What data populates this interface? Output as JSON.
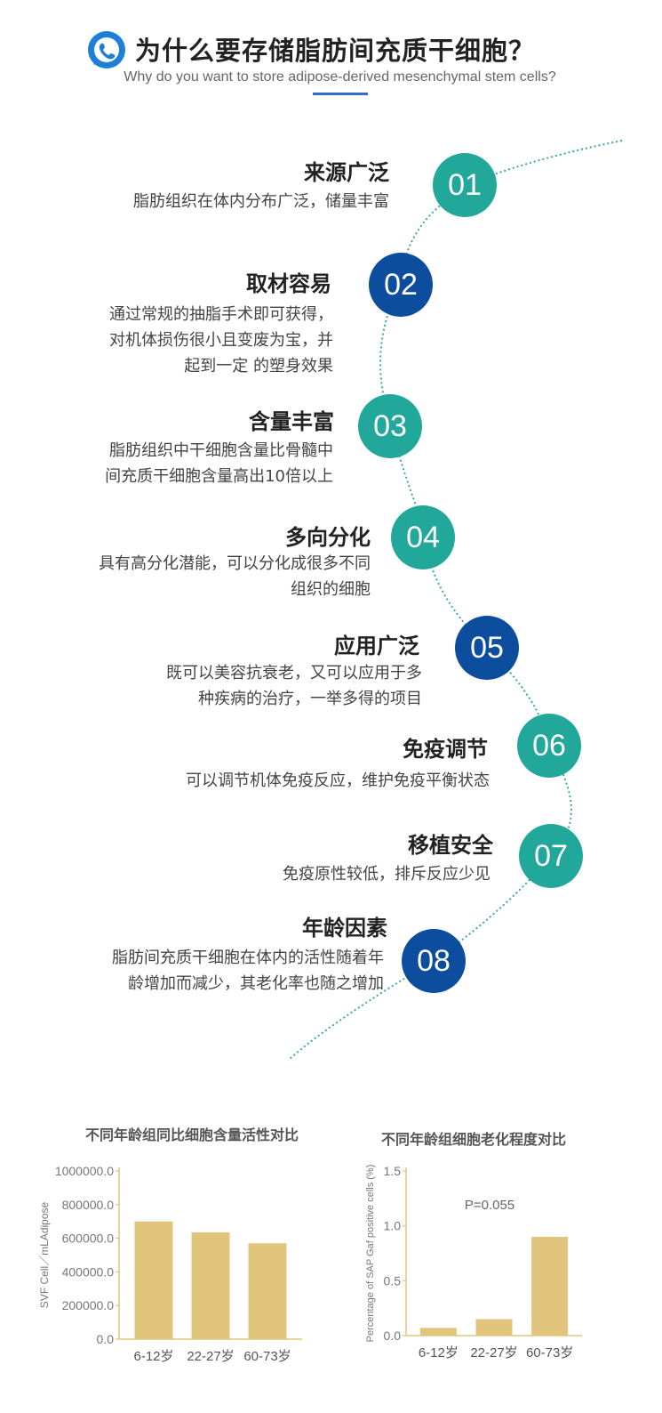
{
  "header": {
    "title": "为什么要存储脂肪间充质干细胞？",
    "subtitle": "Why do you want to store adipose-derived mesenchymal stem cells?",
    "logo_icon": "phone-bubble-icon",
    "accent": "#2f6bd6"
  },
  "colors": {
    "teal": "#22a89a",
    "navy": "#0d4d9e",
    "bar": "#e2c57c"
  },
  "items": [
    {
      "num": "01",
      "title": "来源广泛",
      "desc": "脂肪组织在体内分布广泛，储量丰富",
      "color": "teal"
    },
    {
      "num": "02",
      "title": "取材容易",
      "desc": "通过常规的抽脂手术即可获得，\n对机体损伤很小且变废为宝，并\n起到一定 的塑身效果",
      "color": "navy"
    },
    {
      "num": "03",
      "title": "含量丰富",
      "desc": "脂肪组织中干细胞含量比骨髓中\n间充质干细胞含量高出10倍以上",
      "color": "teal"
    },
    {
      "num": "04",
      "title": "多向分化",
      "desc": "具有高分化潜能，可以分化成很多不同\n组织的细胞",
      "color": "teal"
    },
    {
      "num": "05",
      "title": "应用广泛",
      "desc": "既可以美容抗衰老，又可以应用于多\n种疾病的治疗，一举多得的项目",
      "color": "navy"
    },
    {
      "num": "06",
      "title": "免疫调节",
      "desc": "可以调节机体免疫反应，维护免疫平衡状态",
      "color": "teal"
    },
    {
      "num": "07",
      "title": "移植安全",
      "desc": "免疫原性较低，排斥反应少见",
      "color": "teal"
    },
    {
      "num": "08",
      "title": "年龄因素",
      "desc": "脂肪间充质干细胞在体内的活性随着年\n龄增加而减少，其老化率也随之增加",
      "color": "navy"
    }
  ],
  "chart_data": [
    {
      "type": "bar",
      "title": "不同年龄组同比细胞含量活性对比",
      "ylabel": "SVF Cell／mLAdipose",
      "categories": [
        "6-12岁",
        "22-27岁",
        "60-73岁"
      ],
      "values": [
        700000,
        635000,
        570000
      ],
      "ylim": [
        0,
        1000000
      ],
      "yticks": [
        "1000000.0",
        "800000.0",
        "600000.0",
        "400000.0",
        "200000.0",
        "0.0"
      ],
      "grid": false
    },
    {
      "type": "bar",
      "title": "不同年龄组细胞老化程度对比",
      "ylabel": "Percentage of SAP Gaf positive cells (%)",
      "categories": [
        "6-12岁",
        "22-27岁",
        "60-73岁"
      ],
      "values": [
        0.07,
        0.15,
        0.9
      ],
      "ylim": [
        0,
        1.5
      ],
      "yticks": [
        "1.5",
        "1.0",
        "0.5",
        "0.0"
      ],
      "annotation": "P=0.055",
      "grid": false
    }
  ]
}
